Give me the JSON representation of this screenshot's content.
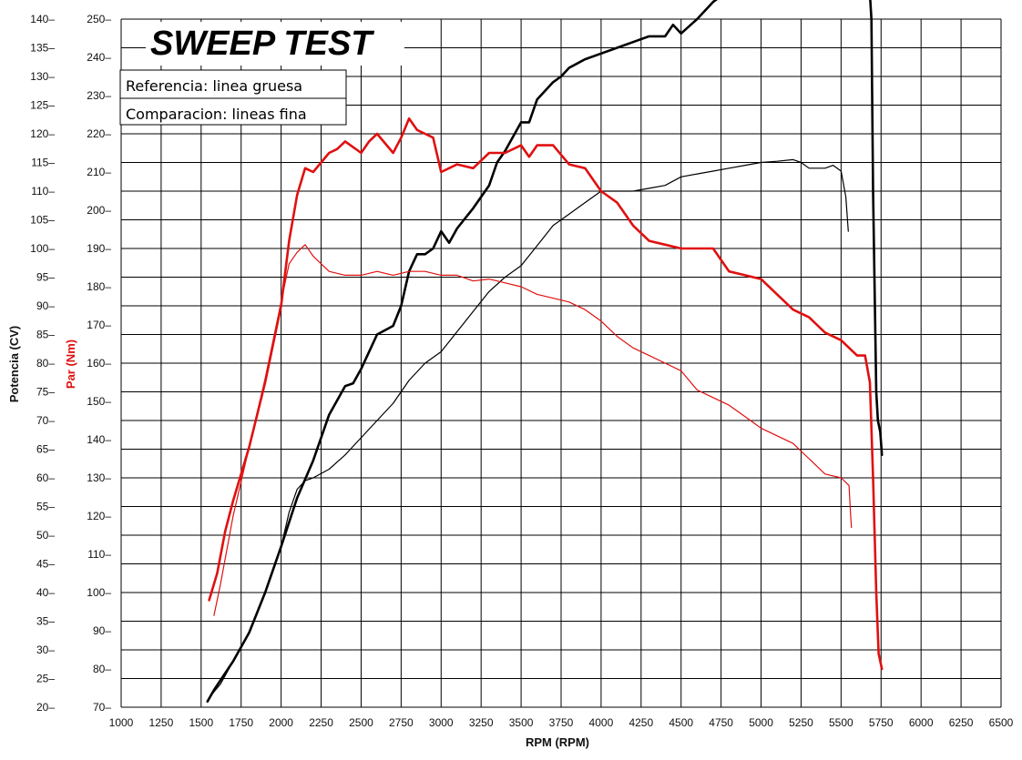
{
  "chart_data": {
    "type": "line",
    "title": "SWEEP TEST",
    "xlabel": "RPM (RPM)",
    "ylabel_left": "Potencia (CV)",
    "ylabel_right": "Par (Nm)",
    "xlim": [
      1000,
      6500
    ],
    "ylim_power": [
      20,
      140
    ],
    "ylim_torque": [
      70,
      250
    ],
    "x_ticks": [
      1000,
      1250,
      1500,
      1750,
      2000,
      2250,
      2500,
      2750,
      3000,
      3250,
      3500,
      3750,
      4000,
      4250,
      4500,
      4750,
      5000,
      5250,
      5500,
      5750,
      6000,
      6250,
      6500
    ],
    "x_tick_labels": [
      "1000",
      "1250",
      "1500",
      "1750",
      "2000",
      "2250",
      "2500",
      "2750",
      "3000",
      "3250",
      "3500",
      "3750",
      "4000",
      "4250",
      "4500",
      "4750",
      "5000",
      "5250",
      "5500",
      "5750",
      "6000",
      "6250",
      "6500"
    ],
    "power_ticks": [
      20,
      25,
      30,
      35,
      40,
      45,
      50,
      55,
      60,
      65,
      70,
      75,
      80,
      85,
      90,
      95,
      100,
      105,
      110,
      115,
      120,
      125,
      130,
      135,
      140
    ],
    "power_tick_labels": [
      "20–",
      "25–",
      "30–",
      "35–",
      "40–",
      "45–",
      "50–",
      "55–",
      "60–",
      "65–",
      "70–",
      "75–",
      "80–",
      "85–",
      "90–",
      "95–",
      "100–",
      "105–",
      "110–",
      "115–",
      "120–",
      "125–",
      "130–",
      "135–",
      "140–"
    ],
    "torque_ticks": [
      70,
      80,
      90,
      100,
      110,
      120,
      130,
      140,
      150,
      160,
      170,
      180,
      190,
      200,
      210,
      220,
      230,
      240,
      250
    ],
    "torque_tick_labels": [
      "70–",
      "80–",
      "90–",
      "100–",
      "110–",
      "120–",
      "130–",
      "140–",
      "150–",
      "160–",
      "170–",
      "180–",
      "190–",
      "200–",
      "210–",
      "220–",
      "230–",
      "240–",
      "250–"
    ],
    "grid": true,
    "legend": {
      "position": "top-left",
      "entries": [
        "Referencia: linea gruesa",
        "Comparacion: lineas fina"
      ]
    },
    "series": [
      {
        "axis": "left",
        "color": "#000000",
        "style": "thick",
        "points": [
          [
            1540,
            21
          ],
          [
            1580,
            23
          ],
          [
            1700,
            28
          ],
          [
            1800,
            33
          ],
          [
            1900,
            40
          ],
          [
            2000,
            48
          ],
          [
            2100,
            56.5
          ],
          [
            2200,
            63
          ],
          [
            2300,
            71
          ],
          [
            2400,
            76
          ],
          [
            2450,
            76.5
          ],
          [
            2500,
            79
          ],
          [
            2600,
            85
          ],
          [
            2700,
            86.5
          ],
          [
            2750,
            90
          ],
          [
            2800,
            96
          ],
          [
            2850,
            99
          ],
          [
            2900,
            99
          ],
          [
            2950,
            100
          ],
          [
            3000,
            103
          ],
          [
            3050,
            101
          ],
          [
            3100,
            103.5
          ],
          [
            3200,
            107
          ],
          [
            3300,
            111
          ],
          [
            3350,
            115
          ],
          [
            3400,
            117
          ],
          [
            3500,
            122
          ],
          [
            3550,
            122
          ],
          [
            3600,
            126
          ],
          [
            3700,
            129
          ],
          [
            3750,
            130
          ],
          [
            3800,
            131.5
          ],
          [
            3900,
            133
          ],
          [
            4000,
            134
          ],
          [
            4100,
            135
          ],
          [
            4200,
            136
          ],
          [
            4300,
            137
          ],
          [
            4400,
            137
          ],
          [
            4450,
            139
          ],
          [
            4500,
            137.5
          ],
          [
            4600,
            140
          ],
          [
            4700,
            143
          ],
          [
            4800,
            145
          ],
          [
            4900,
            145
          ],
          [
            5000,
            147
          ],
          [
            5100,
            148.5
          ],
          [
            5200,
            148.5
          ],
          [
            5300,
            148
          ],
          [
            5400,
            149
          ],
          [
            5500,
            148.5
          ],
          [
            5600,
            149.5
          ],
          [
            5650,
            151.3
          ],
          [
            5670,
            149
          ],
          [
            5690,
            140
          ],
          [
            5700,
            110
          ],
          [
            5720,
            75
          ],
          [
            5730,
            70
          ],
          [
            5745,
            68
          ],
          [
            5755,
            64
          ]
        ]
      },
      {
        "axis": "left",
        "color": "#000000",
        "style": "thin",
        "points": [
          [
            1560,
            22
          ],
          [
            1620,
            24
          ],
          [
            1700,
            28
          ],
          [
            1800,
            33
          ],
          [
            1900,
            40
          ],
          [
            2000,
            48
          ],
          [
            2050,
            54
          ],
          [
            2100,
            58
          ],
          [
            2150,
            59.5
          ],
          [
            2200,
            60
          ],
          [
            2300,
            61.5
          ],
          [
            2400,
            64
          ],
          [
            2500,
            67
          ],
          [
            2600,
            70
          ],
          [
            2700,
            73
          ],
          [
            2800,
            77
          ],
          [
            2900,
            80
          ],
          [
            3000,
            82
          ],
          [
            3100,
            85.5
          ],
          [
            3200,
            89
          ],
          [
            3300,
            92.5
          ],
          [
            3400,
            95
          ],
          [
            3500,
            97
          ],
          [
            3600,
            100.5
          ],
          [
            3700,
            104
          ],
          [
            3800,
            106
          ],
          [
            3900,
            108
          ],
          [
            4000,
            110
          ],
          [
            4100,
            110
          ],
          [
            4200,
            110
          ],
          [
            4300,
            110.5
          ],
          [
            4400,
            111
          ],
          [
            4500,
            112.5
          ],
          [
            4600,
            113
          ],
          [
            4700,
            113.5
          ],
          [
            4800,
            114
          ],
          [
            4900,
            114.5
          ],
          [
            5000,
            115
          ],
          [
            5100,
            115.2
          ],
          [
            5200,
            115.5
          ],
          [
            5250,
            115
          ],
          [
            5300,
            114
          ],
          [
            5400,
            114
          ],
          [
            5450,
            114.5
          ],
          [
            5500,
            113.5
          ],
          [
            5530,
            109
          ],
          [
            5545,
            103
          ]
        ]
      },
      {
        "axis": "right",
        "color": "#e01010",
        "style": "thick",
        "points": [
          [
            1550,
            98
          ],
          [
            1600,
            105
          ],
          [
            1650,
            116
          ],
          [
            1700,
            124
          ],
          [
            1800,
            138
          ],
          [
            1900,
            155
          ],
          [
            2000,
            175
          ],
          [
            2050,
            192
          ],
          [
            2100,
            204
          ],
          [
            2150,
            211
          ],
          [
            2200,
            210
          ],
          [
            2300,
            215
          ],
          [
            2350,
            216
          ],
          [
            2400,
            218
          ],
          [
            2500,
            215
          ],
          [
            2550,
            218
          ],
          [
            2600,
            220
          ],
          [
            2700,
            215
          ],
          [
            2750,
            219
          ],
          [
            2800,
            224
          ],
          [
            2850,
            221
          ],
          [
            2900,
            220
          ],
          [
            2950,
            219
          ],
          [
            3000,
            210
          ],
          [
            3100,
            212
          ],
          [
            3200,
            211
          ],
          [
            3300,
            215
          ],
          [
            3400,
            215
          ],
          [
            3500,
            217
          ],
          [
            3550,
            214
          ],
          [
            3600,
            217
          ],
          [
            3700,
            217
          ],
          [
            3800,
            212
          ],
          [
            3900,
            211
          ],
          [
            4000,
            205
          ],
          [
            4100,
            202
          ],
          [
            4200,
            196
          ],
          [
            4300,
            192
          ],
          [
            4400,
            191
          ],
          [
            4500,
            190
          ],
          [
            4600,
            190
          ],
          [
            4700,
            190
          ],
          [
            4800,
            184
          ],
          [
            4900,
            183
          ],
          [
            5000,
            182
          ],
          [
            5100,
            178
          ],
          [
            5200,
            174
          ],
          [
            5300,
            172
          ],
          [
            5400,
            168
          ],
          [
            5500,
            166
          ],
          [
            5600,
            162
          ],
          [
            5650,
            162
          ],
          [
            5680,
            155
          ],
          [
            5700,
            130
          ],
          [
            5720,
            100
          ],
          [
            5735,
            84
          ],
          [
            5755,
            80
          ]
        ]
      },
      {
        "axis": "right",
        "color": "#e01010",
        "style": "thin",
        "points": [
          [
            1580,
            94
          ],
          [
            1620,
            102
          ],
          [
            1700,
            120
          ],
          [
            1800,
            138
          ],
          [
            1900,
            156
          ],
          [
            2000,
            176
          ],
          [
            2050,
            186
          ],
          [
            2100,
            189
          ],
          [
            2150,
            191
          ],
          [
            2200,
            188
          ],
          [
            2300,
            184
          ],
          [
            2400,
            183
          ],
          [
            2500,
            183
          ],
          [
            2600,
            184
          ],
          [
            2700,
            183
          ],
          [
            2800,
            184
          ],
          [
            2900,
            184
          ],
          [
            3000,
            183
          ],
          [
            3100,
            183
          ],
          [
            3200,
            181.5
          ],
          [
            3300,
            182
          ],
          [
            3400,
            181
          ],
          [
            3500,
            180
          ],
          [
            3600,
            178
          ],
          [
            3700,
            177
          ],
          [
            3800,
            176
          ],
          [
            3900,
            174
          ],
          [
            4000,
            171
          ],
          [
            4100,
            167
          ],
          [
            4200,
            164
          ],
          [
            4300,
            162
          ],
          [
            4400,
            160
          ],
          [
            4500,
            158
          ],
          [
            4600,
            153
          ],
          [
            4700,
            151
          ],
          [
            4800,
            149
          ],
          [
            4900,
            146
          ],
          [
            5000,
            143
          ],
          [
            5100,
            141
          ],
          [
            5200,
            139
          ],
          [
            5300,
            135
          ],
          [
            5400,
            131
          ],
          [
            5500,
            130
          ],
          [
            5550,
            128
          ],
          [
            5560,
            120
          ],
          [
            5565,
            117
          ]
        ]
      }
    ]
  }
}
